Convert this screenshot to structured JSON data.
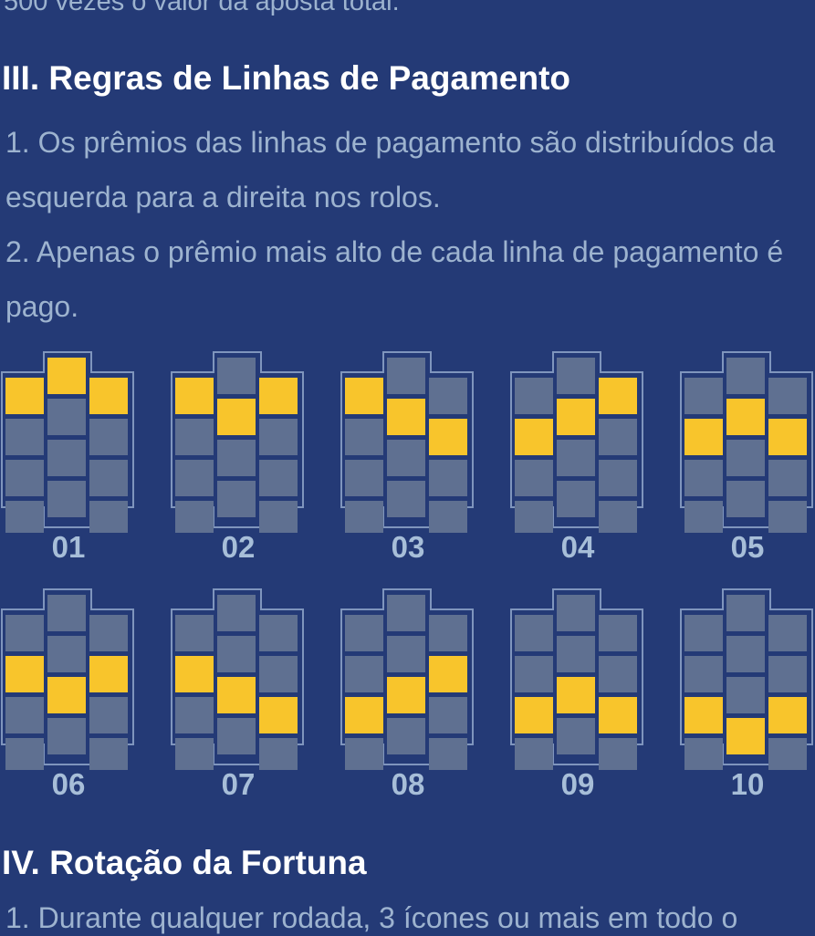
{
  "top_text": "500 vezes o valor da aposta total.",
  "section3": {
    "title": "III. Regras de Linhas de Pagamento",
    "paragraphs": [
      "1. Os prêmios das linhas de pagamento são distribuídos da esquerda para a direita nos rolos.",
      "2. Apenas o prêmio mais alto de cada linha de pagamento é pago."
    ]
  },
  "paylines": [
    {
      "label": "01",
      "rows": [
        0,
        0,
        0
      ]
    },
    {
      "label": "02",
      "rows": [
        0,
        1,
        0
      ]
    },
    {
      "label": "03",
      "rows": [
        0,
        1,
        2
      ]
    },
    {
      "label": "04",
      "rows": [
        2,
        1,
        0
      ]
    },
    {
      "label": "05",
      "rows": [
        2,
        1,
        2
      ]
    },
    {
      "label": "06",
      "rows": [
        2,
        3,
        2
      ]
    },
    {
      "label": "07",
      "rows": [
        2,
        3,
        4
      ]
    },
    {
      "label": "08",
      "rows": [
        4,
        3,
        2
      ]
    },
    {
      "label": "09",
      "rows": [
        4,
        3,
        4
      ]
    },
    {
      "label": "10",
      "rows": [
        4,
        5,
        4
      ]
    }
  ],
  "colors": {
    "background": "#243a76",
    "cell": "#5f7091",
    "highlight": "#f8c52c",
    "frame": "#7f95bd"
  },
  "section4": {
    "title": "IV. Rotação da Fortuna",
    "first_line": "1. Durante qualquer rodada, 3 ícones ou mais em todo o"
  }
}
